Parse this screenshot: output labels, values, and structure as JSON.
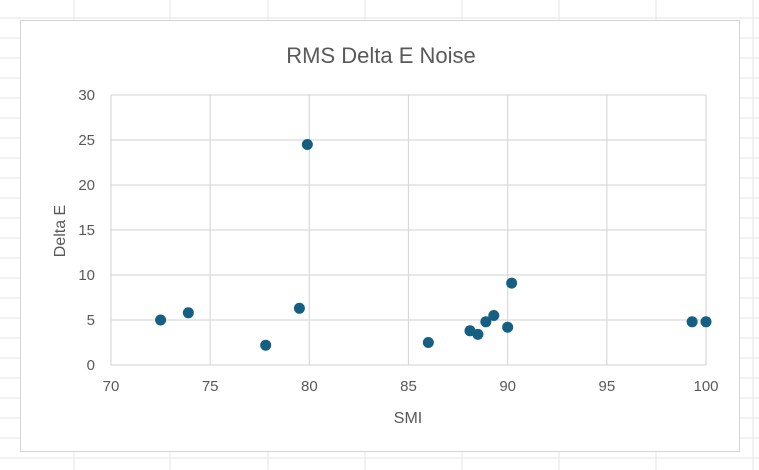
{
  "colors": {
    "marker": "#156082",
    "grid": "#d9d9d9",
    "axis_text": "#595959",
    "title_text": "#595959",
    "sheet_grid": "#e6e6e6"
  },
  "chart_data": {
    "type": "scatter",
    "title": "RMS Delta E Noise",
    "xlabel": "SMI",
    "ylabel": "Delta E",
    "xlim": [
      70,
      100
    ],
    "ylim": [
      0,
      30
    ],
    "xticks": [
      70,
      75,
      80,
      85,
      90,
      95,
      100
    ],
    "yticks": [
      0,
      5,
      10,
      15,
      20,
      25,
      30
    ],
    "grid": true,
    "legend": "none",
    "series": [
      {
        "x": [
          72.5,
          73.9,
          77.8,
          79.5,
          79.9,
          86.0,
          88.1,
          88.5,
          88.9,
          89.3,
          90.0,
          90.2,
          99.3,
          100.0
        ],
        "y": [
          5.0,
          5.8,
          2.2,
          6.3,
          24.5,
          2.5,
          3.8,
          3.4,
          4.8,
          5.5,
          4.2,
          9.1,
          4.8,
          4.8
        ]
      }
    ]
  }
}
